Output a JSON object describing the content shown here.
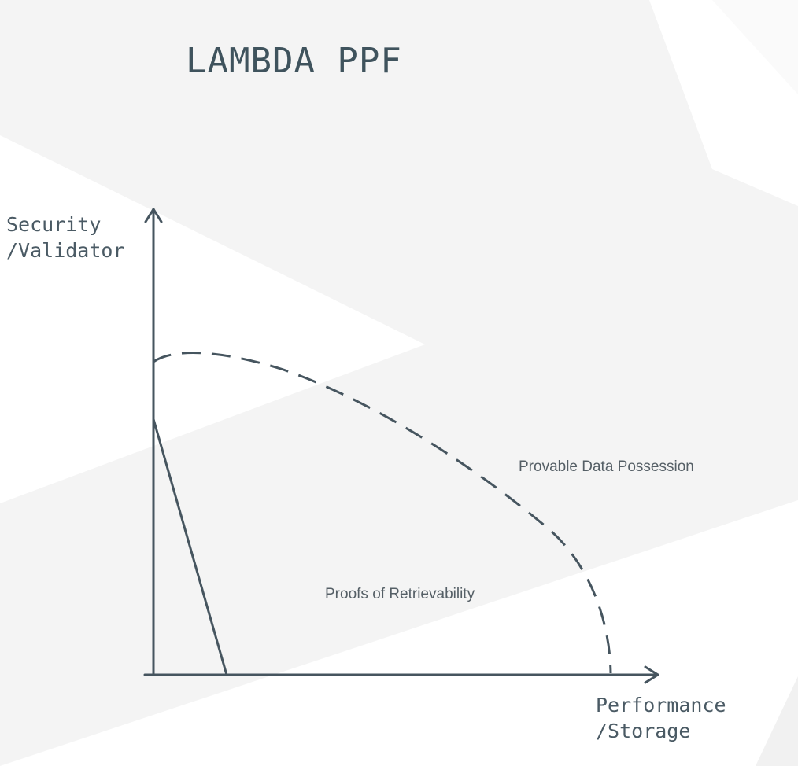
{
  "title": "LAMBDA PPF",
  "y_axis": {
    "line1": "Security",
    "line2": "/Validator"
  },
  "x_axis": {
    "line1": "Performance",
    "line2": "/Storage"
  },
  "curves": {
    "provable_data_possession": {
      "label": "Provable Data Possession",
      "style": "dashed"
    },
    "proofs_of_retrievability": {
      "label": "Proofs of Retrievability",
      "style": "solid"
    }
  },
  "colors": {
    "line": "#46555f",
    "title": "#3f535d",
    "background_shape": "#f4f4f4"
  }
}
